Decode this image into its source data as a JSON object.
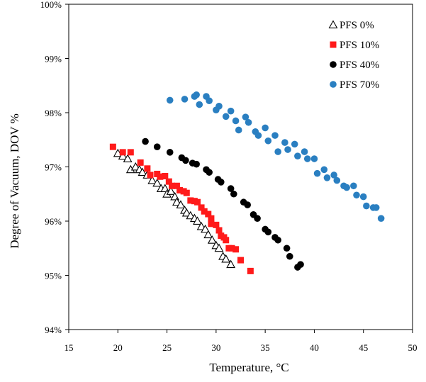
{
  "chart_data": {
    "type": "scatter",
    "title": "",
    "xlabel": "Temperature, °C",
    "ylabel": "Degree of Vacuum, DOV %",
    "xlim": [
      15,
      50
    ],
    "ylim": [
      94,
      100
    ],
    "x_ticks": [
      15,
      20,
      25,
      30,
      35,
      40,
      45,
      50
    ],
    "x_tick_labels": [
      "15",
      "20",
      "25",
      "30",
      "35",
      "40",
      "45",
      "50"
    ],
    "y_ticks": [
      94,
      95,
      96,
      97,
      98,
      99,
      100
    ],
    "y_tick_labels": [
      "94%",
      "95%",
      "96%",
      "97%",
      "98%",
      "99%",
      "100%"
    ],
    "grid": false,
    "legend_position": "top-right",
    "series": [
      {
        "name": "PFS 0%",
        "marker": "triangle-open",
        "color": "#000000",
        "x": [
          20.0,
          20.5,
          21.0,
          21.3,
          21.8,
          22.2,
          22.5,
          23.0,
          23.5,
          24.0,
          24.4,
          24.8,
          25.0,
          25.4,
          25.8,
          26.0,
          26.4,
          26.8,
          27.0,
          27.4,
          27.8,
          28.1,
          28.5,
          28.9,
          29.2,
          29.6,
          30.0,
          30.3,
          30.7,
          31.0,
          31.5
        ],
        "y": [
          97.25,
          97.2,
          97.15,
          96.95,
          97.0,
          96.95,
          96.9,
          96.85,
          96.75,
          96.7,
          96.6,
          96.6,
          96.5,
          96.55,
          96.45,
          96.35,
          96.3,
          96.2,
          96.15,
          96.1,
          96.05,
          96.0,
          95.9,
          95.85,
          95.75,
          95.65,
          95.55,
          95.5,
          95.35,
          95.3,
          95.2
        ]
      },
      {
        "name": "PFS 10%",
        "marker": "square",
        "color": "#ff1a1a",
        "x": [
          19.5,
          20.5,
          21.3,
          22.3,
          23.0,
          23.3,
          24.0,
          24.3,
          24.8,
          25.2,
          25.5,
          26.0,
          26.3,
          26.7,
          27.0,
          27.4,
          27.8,
          28.1,
          28.5,
          28.8,
          29.2,
          29.5,
          29.5,
          30.0,
          30.3,
          30.5,
          30.8,
          31.0,
          31.3,
          31.6,
          32.0,
          32.5,
          33.5
        ],
        "y": [
          97.37,
          97.27,
          97.27,
          97.08,
          96.97,
          96.85,
          96.87,
          96.82,
          96.83,
          96.73,
          96.65,
          96.65,
          96.57,
          96.55,
          96.52,
          96.38,
          96.37,
          96.35,
          96.25,
          96.18,
          96.13,
          96.05,
          95.95,
          95.93,
          95.83,
          95.73,
          95.7,
          95.65,
          95.5,
          95.5,
          95.48,
          95.28,
          95.08
        ]
      },
      {
        "name": "PFS 40%",
        "marker": "circle",
        "color": "#000000",
        "x": [
          22.8,
          24.0,
          25.3,
          26.5,
          26.9,
          27.6,
          28.0,
          29.0,
          29.3,
          30.2,
          30.5,
          31.5,
          31.8,
          32.8,
          33.2,
          33.8,
          34.2,
          35.0,
          35.3,
          36.0,
          36.3,
          37.2,
          37.5,
          38.3,
          38.6
        ],
        "y": [
          97.47,
          97.37,
          97.27,
          97.17,
          97.12,
          97.07,
          97.05,
          96.95,
          96.9,
          96.77,
          96.72,
          96.6,
          96.5,
          96.35,
          96.3,
          96.12,
          96.05,
          95.85,
          95.8,
          95.7,
          95.65,
          95.5,
          95.35,
          95.15,
          95.2
        ]
      },
      {
        "name": "PFS 70%",
        "marker": "circle",
        "color": "#2a7fc1",
        "x": [
          25.3,
          26.8,
          27.8,
          28.0,
          28.3,
          29.0,
          29.3,
          30.0,
          30.3,
          31.0,
          31.5,
          32.0,
          32.3,
          33.0,
          33.3,
          34.0,
          34.3,
          35.0,
          35.3,
          36.0,
          36.3,
          37.0,
          37.3,
          38.0,
          38.3,
          39.0,
          39.3,
          40.0,
          40.3,
          41.0,
          41.3,
          42.0,
          42.3,
          43.0,
          43.3,
          44.0,
          44.3,
          45.0,
          45.3,
          46.0,
          46.3,
          46.8
        ],
        "y": [
          98.23,
          98.25,
          98.3,
          98.33,
          98.15,
          98.3,
          98.22,
          98.05,
          98.12,
          97.93,
          98.03,
          97.85,
          97.68,
          97.92,
          97.82,
          97.65,
          97.58,
          97.72,
          97.48,
          97.58,
          97.28,
          97.45,
          97.32,
          97.42,
          97.2,
          97.28,
          97.15,
          97.15,
          96.88,
          96.95,
          96.8,
          96.85,
          96.75,
          96.65,
          96.62,
          96.65,
          96.48,
          96.45,
          96.28,
          96.25,
          96.25,
          96.05
        ]
      }
    ]
  }
}
